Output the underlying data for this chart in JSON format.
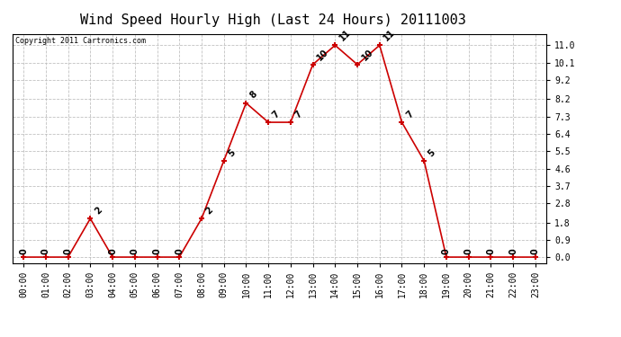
{
  "title": "Wind Speed Hourly High (Last 24 Hours) 20111003",
  "copyright": "Copyright 2011 Cartronics.com",
  "hours": [
    "00:00",
    "01:00",
    "02:00",
    "03:00",
    "04:00",
    "05:00",
    "06:00",
    "07:00",
    "08:00",
    "09:00",
    "10:00",
    "11:00",
    "12:00",
    "13:00",
    "14:00",
    "15:00",
    "16:00",
    "17:00",
    "18:00",
    "19:00",
    "20:00",
    "21:00",
    "22:00",
    "23:00"
  ],
  "values": [
    0,
    0,
    0,
    2,
    0,
    0,
    0,
    0,
    2,
    5,
    8,
    7,
    7,
    10,
    11,
    10,
    11,
    7,
    5,
    0,
    0,
    0,
    0,
    0
  ],
  "yticks": [
    0.0,
    0.9,
    1.8,
    2.8,
    3.7,
    4.6,
    5.5,
    6.4,
    7.3,
    8.2,
    9.2,
    10.1,
    11.0
  ],
  "ylim": [
    -0.3,
    11.6
  ],
  "line_color": "#cc0000",
  "marker_color": "#cc0000",
  "bg_color": "#ffffff",
  "grid_color": "#bbbbbb",
  "title_fontsize": 11,
  "label_fontsize": 7,
  "annot_fontsize": 7,
  "copyright_fontsize": 6
}
